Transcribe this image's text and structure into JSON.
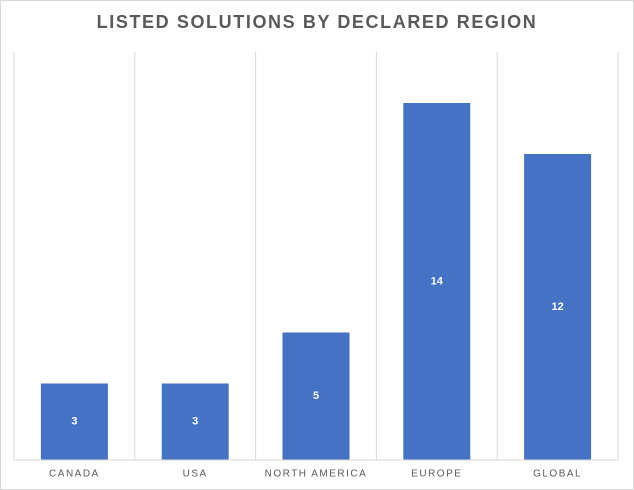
{
  "chart_data": {
    "type": "bar",
    "title": "LISTED SOLUTIONS BY DECLARED REGION",
    "categories": [
      "CANADA",
      "USA",
      "NORTH AMERICA",
      "EUROPE",
      "GLOBAL"
    ],
    "values": [
      3,
      3,
      5,
      14,
      12
    ],
    "color": "#4472c4",
    "ylim": [
      0,
      16
    ],
    "data_labels": true
  }
}
